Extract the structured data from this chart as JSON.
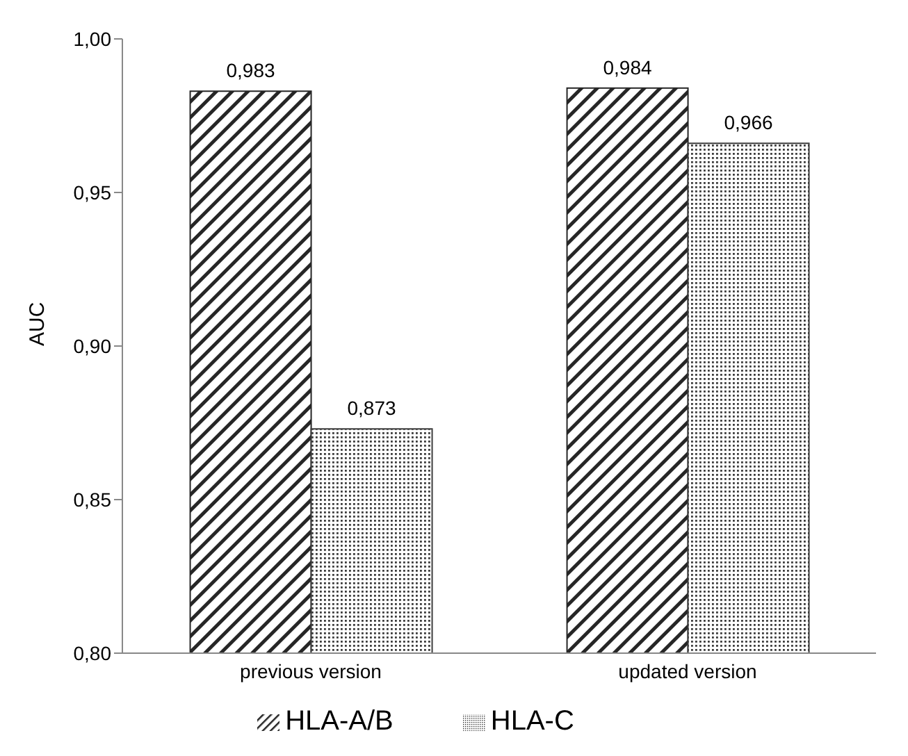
{
  "chart_data": {
    "type": "bar",
    "ylabel": "AUC",
    "categories": [
      "previous version",
      "updated version"
    ],
    "series": [
      {
        "name": "HLA-A/B",
        "color": "#262626",
        "values": [
          0.983,
          0.984
        ],
        "value_labels": [
          "0,983",
          "0,984"
        ]
      },
      {
        "name": "HLA-C",
        "color": "#3c3c3c",
        "values": [
          0.873,
          0.966
        ],
        "value_labels": [
          "0,873",
          "0,966"
        ]
      }
    ],
    "ylim": [
      0.8,
      1.0
    ],
    "yticks": [
      {
        "value": 0.8,
        "label": "0,80"
      },
      {
        "value": 0.85,
        "label": "0,85"
      },
      {
        "value": 0.9,
        "label": "0,90"
      },
      {
        "value": 0.95,
        "label": "0,95"
      },
      {
        "value": 1.0,
        "label": "1,00"
      }
    ],
    "grid": false,
    "legend": "bottom"
  }
}
